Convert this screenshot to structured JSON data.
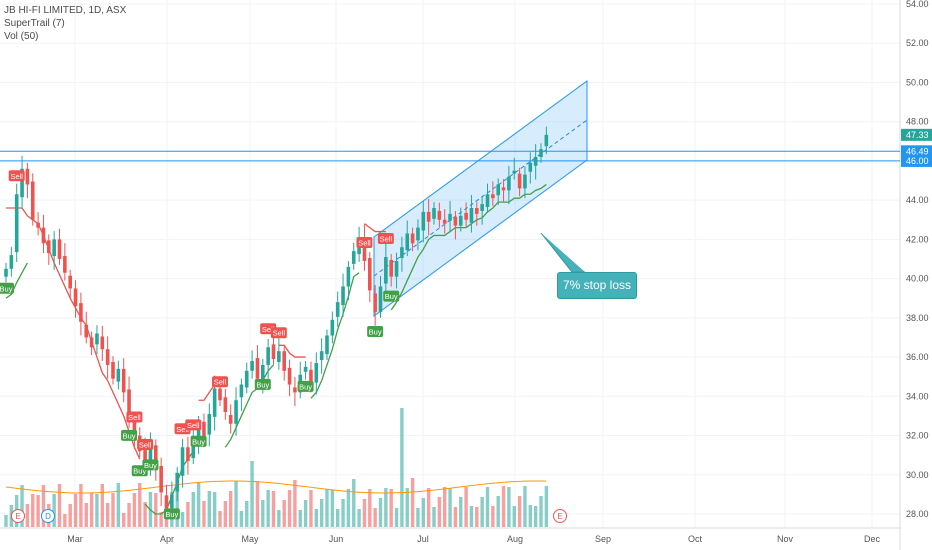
{
  "legend": {
    "symbol": "JB HI-FI LIMITED, 1D, ASX",
    "indicator": "SuperTrail (7)",
    "volume": "Vol (50)"
  },
  "annotation": {
    "text": "7% stop loss"
  },
  "price_axis": {
    "ticks": [
      "54.00",
      "52.00",
      "50.00",
      "48.00",
      "46.00",
      "44.00",
      "42.00",
      "40.00",
      "38.00",
      "36.00",
      "34.00",
      "32.00",
      "30.00",
      "28.00"
    ],
    "labels": [
      {
        "value": 47.33,
        "text": "47.33",
        "color": "#26a69a"
      },
      {
        "value": 46.49,
        "text": "46.49",
        "color": "#2196f3"
      },
      {
        "value": 46.0,
        "text": "46.00",
        "color": "#2196f3"
      }
    ]
  },
  "time_axis": {
    "ticks": [
      "Mar",
      "Apr",
      "May",
      "Jun",
      "Jul",
      "Aug",
      "Sep",
      "Oct",
      "Nov",
      "Dec"
    ]
  },
  "event_markers": [
    "E",
    "D",
    "E"
  ],
  "colors": {
    "up": "#26a69a",
    "down": "#ef5350",
    "buy": "#43a047",
    "sell": "#ef5350",
    "channel": "#2196f3",
    "ma": "#ff9800"
  },
  "chart_data": {
    "type": "candlestick",
    "title": "JB HI-FI LIMITED, 1D, ASX",
    "xlabel": "",
    "ylabel": "",
    "ylim": [
      27.2,
      54.4
    ],
    "x_ticks": [
      "Mar",
      "Apr",
      "May",
      "Jun",
      "Jul",
      "Aug",
      "Sep",
      "Oct",
      "Nov",
      "Dec"
    ],
    "horizontal_lines": [
      46.49,
      46.0
    ],
    "last_price": 47.33,
    "closes": [
      40.5,
      41.2,
      44.3,
      45.6,
      44.8,
      43.0,
      42.6,
      41.8,
      41.3,
      42.0,
      41.0,
      40.3,
      39.5,
      38.6,
      37.8,
      37.0,
      36.5,
      37.2,
      36.4,
      35.6,
      34.9,
      35.4,
      34.2,
      33.0,
      32.0,
      31.2,
      30.6,
      31.5,
      30.3,
      29.1,
      28.3,
      29.0,
      30.1,
      31.4,
      30.7,
      31.6,
      32.7,
      31.9,
      33.1,
      34.4,
      33.8,
      33.2,
      32.6,
      33.8,
      34.6,
      35.3,
      35.8,
      34.9,
      35.6,
      36.5,
      35.9,
      36.3,
      35.3,
      34.6,
      34.2,
      35.1,
      35.5,
      34.7,
      35.7,
      36.3,
      37.1,
      37.9,
      38.8,
      39.6,
      40.6,
      41.4,
      42.1,
      40.9,
      39.4,
      38.3,
      39.6,
      41.1,
      40.1,
      40.9,
      41.6,
      42.3,
      41.8,
      42.6,
      43.4,
      42.9,
      43.6,
      43.0,
      42.8,
      43.3,
      42.7,
      43.2,
      43.0,
      43.6,
      43.3,
      43.8,
      44.3,
      44.1,
      44.8,
      44.5,
      45.2,
      45.5,
      44.6,
      45.3,
      45.9,
      46.2,
      46.6,
      47.33
    ],
    "supertrail_sell": [
      43.6,
      43.6,
      43.6,
      43.6,
      43.2,
      43.0,
      42.8,
      42.2,
      41.5,
      40.8,
      40.2,
      39.6,
      39.0,
      38.5,
      38.0,
      37.6,
      36.8,
      36.0,
      35.2,
      34.8,
      34.2,
      33.6,
      33.0,
      32.2,
      31.4,
      30.8,
      null,
      null,
      null,
      null,
      null,
      null,
      null,
      null,
      null,
      null,
      33.8,
      33.8,
      34.2,
      34.6,
      35.0,
      null,
      null,
      null,
      null,
      null,
      null,
      null,
      null,
      null,
      null,
      36.6,
      36.6,
      36.2,
      36.0,
      36.0,
      36.0,
      null,
      null,
      null,
      null,
      null,
      null,
      null,
      null,
      null,
      null,
      42.8,
      42.6,
      42.4,
      42.4,
      42.4
    ],
    "supertrail_buy": [
      39.0,
      39.2,
      39.8,
      40.3,
      40.8,
      null,
      null,
      null,
      null,
      null,
      null,
      null,
      null,
      null,
      null,
      null,
      null,
      null,
      null,
      null,
      null,
      null,
      null,
      null,
      null,
      null,
      28.5,
      28.2,
      28.0,
      28.0,
      28.2,
      28.9,
      29.6,
      30.4,
      30.8,
      31.2,
      null,
      null,
      null,
      null,
      null,
      31.4,
      31.8,
      32.4,
      33.0,
      33.6,
      34.2,
      34.4,
      34.8,
      35.3,
      35.6,
      null,
      null,
      null,
      null,
      null,
      null,
      33.9,
      34.2,
      34.8,
      35.6,
      36.4,
      37.4,
      38.2,
      39.1,
      40.1,
      40.3,
      null,
      null,
      null,
      null,
      null,
      38.4,
      38.8,
      39.3,
      39.9,
      40.5,
      41.1,
      41.5,
      42.0,
      42.2,
      42.2,
      42.2,
      42.4,
      42.6,
      42.6,
      42.6,
      42.8,
      43.0,
      43.1,
      43.4,
      43.6,
      43.9,
      43.9,
      43.9,
      44.1,
      44.1,
      44.3,
      44.3,
      44.5,
      44.6,
      44.8
    ],
    "signals": [
      {
        "label": "Sell",
        "i": 2
      },
      {
        "label": "Buy",
        "i": 0
      },
      {
        "label": "Sell",
        "i": 24
      },
      {
        "label": "Buy",
        "i": 23
      },
      {
        "label": "Buy",
        "i": 25
      },
      {
        "label": "Sell",
        "i": 26
      },
      {
        "label": "Buy",
        "i": 27
      },
      {
        "label": "Sell",
        "i": 33
      },
      {
        "label": "Sell",
        "i": 35
      },
      {
        "label": "Buy",
        "i": 31
      },
      {
        "label": "Buy",
        "i": 36
      },
      {
        "label": "Sell",
        "i": 40
      },
      {
        "label": "Sell",
        "i": 49
      },
      {
        "label": "Sell",
        "i": 51
      },
      {
        "label": "Buy",
        "i": 48
      },
      {
        "label": "Buy",
        "i": 56
      },
      {
        "label": "Sell",
        "i": 67
      },
      {
        "label": "Sell",
        "i": 71
      },
      {
        "label": "Buy",
        "i": 69
      },
      {
        "label": "Buy",
        "i": 72
      }
    ]
  }
}
